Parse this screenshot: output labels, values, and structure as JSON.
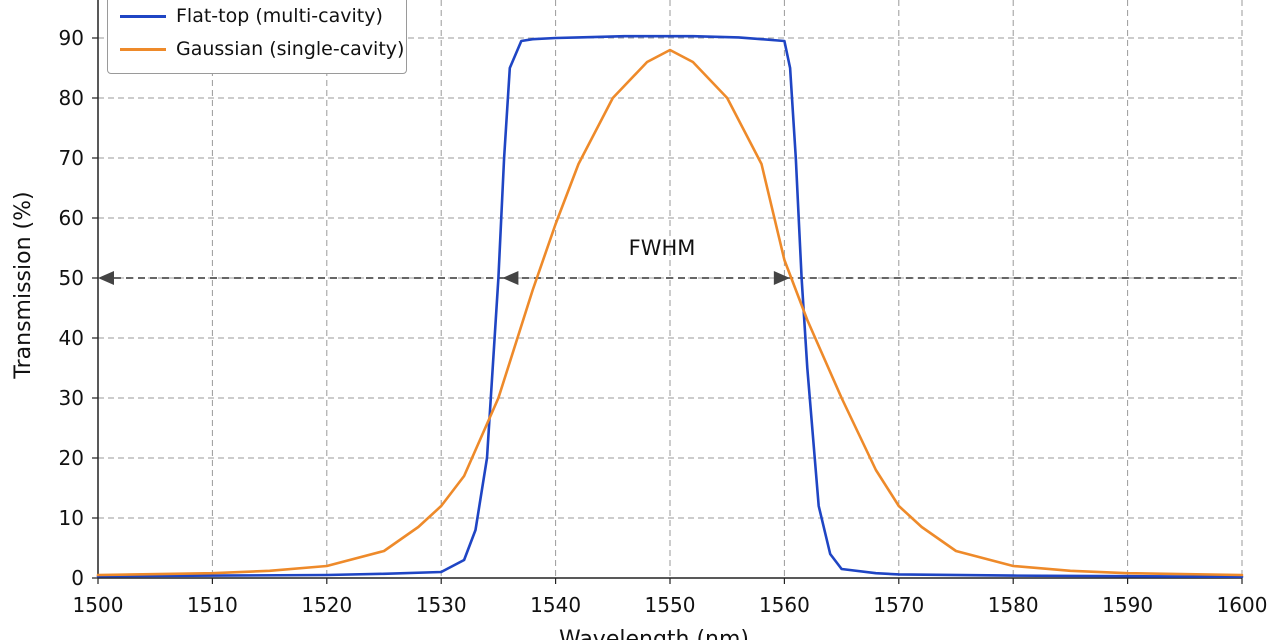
{
  "chart_data": {
    "type": "line",
    "xlabel": "Wavelength (nm)",
    "ylabel": "Transmission (%)",
    "xlim": [
      1500,
      1600
    ],
    "ylim": [
      0,
      90
    ],
    "x_ticks": [
      1500,
      1510,
      1520,
      1530,
      1540,
      1550,
      1560,
      1570,
      1580,
      1590,
      1600
    ],
    "y_ticks": [
      0,
      10,
      20,
      30,
      40,
      50,
      60,
      70,
      80,
      90
    ],
    "grid": true,
    "legend_position": "top-left",
    "series": [
      {
        "name": "Flat-top (multi-cavity)",
        "color": "#1f45c4",
        "x": [
          1500,
          1510,
          1520,
          1525,
          1530,
          1532,
          1533,
          1534,
          1534.5,
          1535,
          1535.5,
          1536,
          1537,
          1538,
          1540,
          1542,
          1544,
          1546,
          1548,
          1550,
          1552,
          1554,
          1556,
          1558,
          1560,
          1560.5,
          1561,
          1561.5,
          1562,
          1563,
          1564,
          1565,
          1568,
          1570,
          1580,
          1590,
          1600
        ],
        "y": [
          0.3,
          0.4,
          0.5,
          0.7,
          1.0,
          3.0,
          8.0,
          20.0,
          35.0,
          50.0,
          70.0,
          85.0,
          89.5,
          89.8,
          90.0,
          90.1,
          90.2,
          90.3,
          90.3,
          90.3,
          90.3,
          90.2,
          90.1,
          89.8,
          89.5,
          85.0,
          70.0,
          50.0,
          35.0,
          12.0,
          4.0,
          1.5,
          0.8,
          0.6,
          0.4,
          0.3,
          0.2
        ]
      },
      {
        "name": "Gaussian (single-cavity)",
        "color": "#ee8a2a",
        "x": [
          1500,
          1510,
          1515,
          1520,
          1525,
          1528,
          1530,
          1532,
          1535,
          1538,
          1540,
          1542,
          1545,
          1548,
          1550,
          1552,
          1555,
          1558,
          1560,
          1562,
          1565,
          1568,
          1570,
          1572,
          1575,
          1580,
          1585,
          1590,
          1600
        ],
        "y": [
          0.5,
          0.8,
          1.2,
          2.0,
          4.5,
          8.5,
          12.0,
          17.0,
          30.0,
          48.0,
          59.0,
          69.0,
          80.0,
          86.0,
          88.0,
          86.0,
          80.0,
          69.0,
          53.0,
          43.0,
          30.0,
          18.0,
          12.0,
          8.5,
          4.5,
          2.0,
          1.2,
          0.8,
          0.5
        ]
      }
    ],
    "annotations": [
      {
        "text": "FWHM",
        "x": 1550,
        "y": 53
      }
    ],
    "fwhm_line": {
      "y": 50,
      "arrow_left_x": 1500,
      "arrow_right_x": 1561,
      "inner_arrow_x": 1535
    }
  }
}
